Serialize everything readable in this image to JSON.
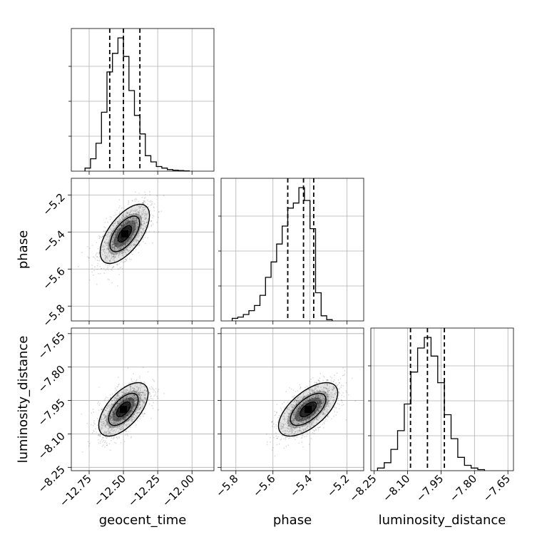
{
  "chart_data": {
    "type": "corner",
    "parameters": [
      "geocent_time",
      "phase",
      "luminosity_distance"
    ],
    "axis_labels": {
      "bottom": [
        "geocent_time",
        "phase",
        "luminosity_distance"
      ],
      "left": [
        "phase",
        "luminosity_distance"
      ]
    },
    "grid": true,
    "ranges": {
      "geocent_time": [
        -12.88,
        -11.84
      ],
      "phase": [
        -5.88,
        -5.11
      ],
      "luminosity_distance": [
        -8.265,
        -7.625
      ]
    },
    "ticks": {
      "geocent_time": [
        -12.75,
        -12.5,
        -12.25,
        -12.0
      ],
      "phase": [
        -5.8,
        -5.6,
        -5.4,
        -5.2
      ],
      "luminosity_distance": [
        -8.25,
        -8.1,
        -7.95,
        -7.8,
        -7.65
      ]
    },
    "tick_labels": {
      "geocent_time": [
        "−12.75",
        "−12.50",
        "−12.25",
        "−12.00"
      ],
      "phase": [
        "−5.8",
        "−5.6",
        "−5.4",
        "−5.2"
      ],
      "luminosity_distance": [
        "−8.25",
        "−8.10",
        "−7.95",
        "−7.80",
        "−7.65"
      ]
    },
    "marginals": {
      "geocent_time": {
        "edges": [
          -12.78,
          -12.74,
          -12.7,
          -12.66,
          -12.62,
          -12.58,
          -12.54,
          -12.5,
          -12.46,
          -12.42,
          -12.38,
          -12.34,
          -12.3,
          -12.26,
          -12.22,
          -12.18,
          -12.14,
          -12.1,
          -12.06,
          -12.02
        ],
        "counts": [
          1,
          4,
          9,
          19,
          32,
          38,
          43,
          37,
          26,
          18,
          12,
          5,
          3,
          1.5,
          1,
          0.5,
          0.3,
          0.2,
          0.1
        ],
        "quantiles": [
          -12.6,
          -12.5,
          -12.38
        ]
      },
      "phase": {
        "edges": [
          -5.82,
          -5.79,
          -5.76,
          -5.73,
          -5.7,
          -5.67,
          -5.64,
          -5.61,
          -5.58,
          -5.55,
          -5.52,
          -5.49,
          -5.46,
          -5.43,
          -5.4,
          -5.37,
          -5.34,
          -5.31,
          -5.28
        ],
        "counts": [
          1,
          1.5,
          2.5,
          4,
          6,
          10,
          17,
          23,
          30,
          37,
          44,
          46,
          52,
          47,
          36,
          11,
          2,
          0.5
        ],
        "quantiles": [
          -5.52,
          -5.435,
          -5.38
        ]
      },
      "luminosity_distance": {
        "edges": [
          -8.235,
          -8.205,
          -8.175,
          -8.145,
          -8.115,
          -8.085,
          -8.055,
          -8.025,
          -7.995,
          -7.965,
          -7.935,
          -7.905,
          -7.875,
          -7.845,
          -7.815,
          -7.785,
          -7.755
        ],
        "counts": [
          1,
          3,
          8,
          15,
          25,
          37,
          46,
          50,
          43,
          33,
          21,
          12,
          5,
          2,
          1,
          0.4
        ],
        "quantiles": [
          -8.087,
          -8.011,
          -7.935
        ]
      }
    },
    "joint": [
      {
        "x": "geocent_time",
        "y": "phase",
        "peak": [
          -12.49,
          -5.41
        ],
        "sd": [
          0.09,
          0.08
        ],
        "rho": 0.62
      },
      {
        "x": "geocent_time",
        "y": "luminosity_distance",
        "peak": [
          -12.5,
          -7.99
        ],
        "sd": [
          0.09,
          0.06
        ],
        "rho": 0.6
      },
      {
        "x": "phase",
        "y": "luminosity_distance",
        "peak": [
          -5.41,
          -7.99
        ],
        "sd": [
          0.08,
          0.06
        ],
        "rho": 0.62
      }
    ],
    "colors": {
      "line": "#000000",
      "grid": "#b0b0b0",
      "points": "#000000"
    }
  }
}
